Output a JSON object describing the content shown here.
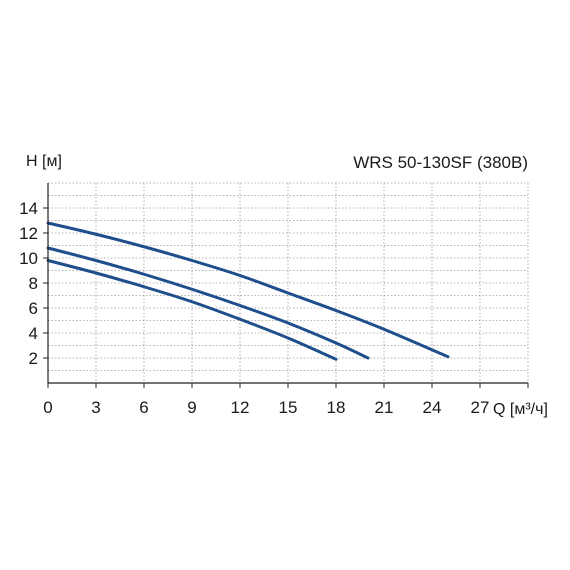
{
  "chart_data": {
    "type": "line",
    "title": "WRS 50-130SF (380В)",
    "ylabel": "H [м]",
    "xlabel": "Q [м³/ч]",
    "xlim": [
      0,
      30
    ],
    "ylim": [
      0,
      16
    ],
    "xticks": [
      "0",
      "3",
      "6",
      "9",
      "12",
      "15",
      "18",
      "21",
      "24",
      "27"
    ],
    "xtick_values": [
      0,
      3,
      6,
      9,
      12,
      15,
      18,
      21,
      24,
      27
    ],
    "yticks": [
      "2",
      "4",
      "6",
      "8",
      "10",
      "12",
      "14"
    ],
    "ytick_values": [
      2,
      4,
      6,
      8,
      10,
      12,
      14
    ],
    "grid": true,
    "line_color": "#1f4e8c",
    "series": [
      {
        "x": [
          0,
          3,
          6,
          9,
          12,
          15,
          18,
          21,
          25
        ],
        "y": [
          12.8,
          11.9,
          10.9,
          9.8,
          8.6,
          7.2,
          5.8,
          4.3,
          2.1
        ]
      },
      {
        "x": [
          0,
          3,
          6,
          9,
          12,
          15,
          18,
          20
        ],
        "y": [
          10.8,
          9.8,
          8.7,
          7.5,
          6.2,
          4.8,
          3.2,
          2.0
        ]
      },
      {
        "x": [
          0,
          3,
          6,
          9,
          12,
          15,
          18
        ],
        "y": [
          9.8,
          8.8,
          7.7,
          6.5,
          5.1,
          3.6,
          1.9
        ]
      }
    ]
  }
}
